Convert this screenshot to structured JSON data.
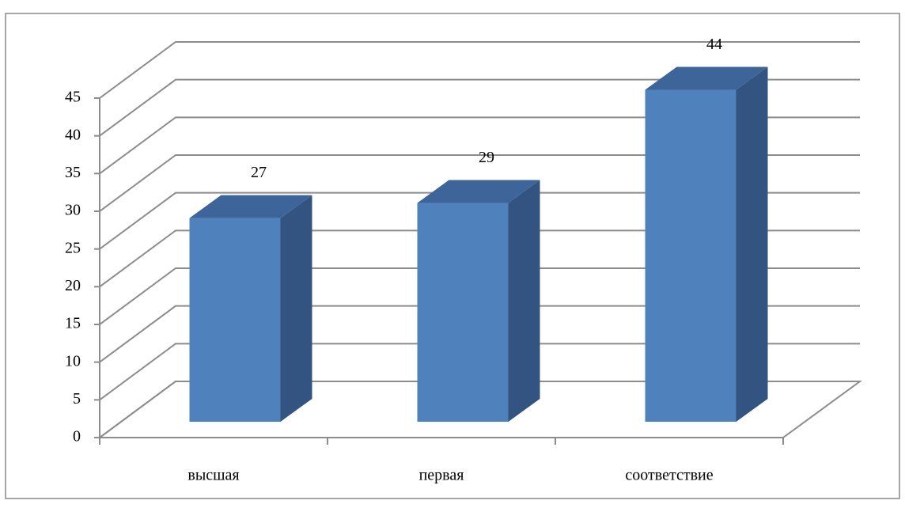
{
  "chart_data": {
    "type": "bar",
    "categories": [
      "высшая",
      "первая",
      "соответствие"
    ],
    "values": [
      27,
      29,
      44
    ],
    "color": "#4f81bd",
    "ylim": [
      0,
      45
    ],
    "yticks": [
      0,
      5,
      10,
      15,
      20,
      25,
      30,
      35,
      40,
      45
    ],
    "grid": true
  }
}
